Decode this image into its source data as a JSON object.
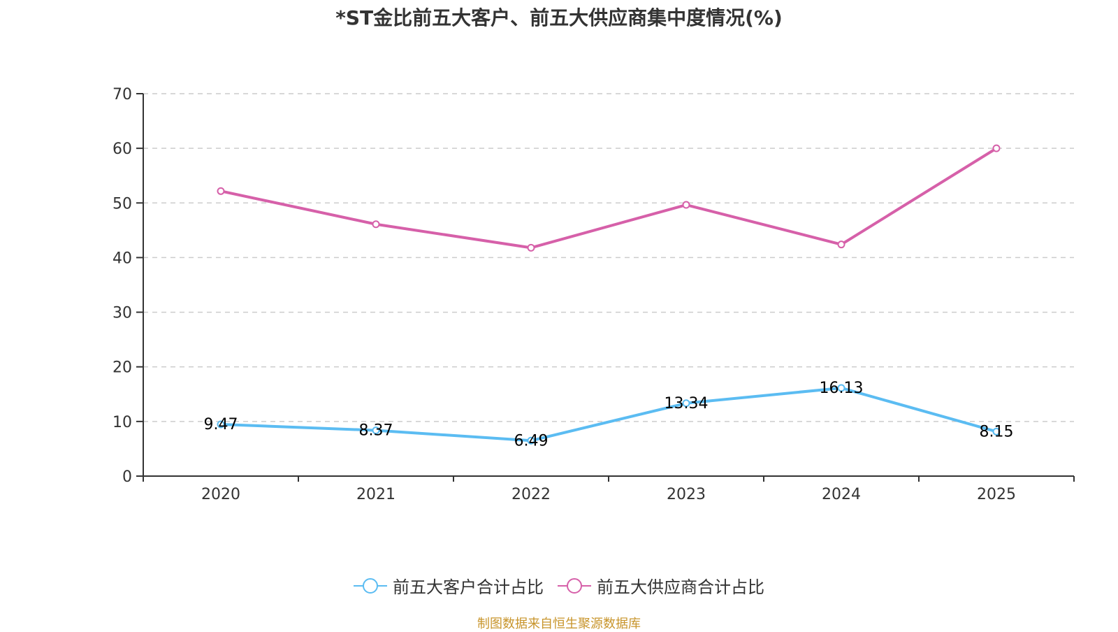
{
  "title": "*ST金比前五大客户、前五大供应商集中度情况(%)",
  "footer": {
    "text": "制图数据来自恒生聚源数据库",
    "color": "#C8952C"
  },
  "chart_data": {
    "type": "line",
    "title": "*ST金比前五大客户、前五大供应商集中度情况(%)",
    "xlabel": "",
    "ylabel": "",
    "categories": [
      "2020",
      "2021",
      "2022",
      "2023",
      "2024",
      "2025"
    ],
    "ylim": [
      0,
      70
    ],
    "yticks": [
      0,
      10,
      20,
      30,
      40,
      50,
      60,
      70
    ],
    "grid": "horizontal-dashed",
    "legend_position": "bottom-center",
    "series": [
      {
        "name": "前五大客户合计占比",
        "color": "#5BBCF2",
        "values": [
          9.47,
          8.37,
          6.49,
          13.34,
          16.13,
          8.15
        ],
        "labels": [
          "9.47",
          "8.37",
          "6.49",
          "13.34",
          "16.13",
          "8.15"
        ],
        "show_labels": true
      },
      {
        "name": "前五大供应商合计占比",
        "color": "#D660A9",
        "values": [
          52.17,
          46.1,
          41.8,
          49.65,
          42.4,
          60.0
        ],
        "show_labels": false
      }
    ]
  }
}
